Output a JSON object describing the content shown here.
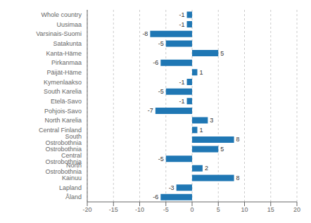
{
  "chart_data": {
    "type": "bar",
    "orientation": "horizontal",
    "categories": [
      "Whole country",
      "Uusimaa",
      "Varsinais-Suomi",
      "Satakunta",
      "Kanta-Häme",
      "Pirkanmaa",
      "Päijät-Häme",
      "Kymenlaakso",
      "South Karelia",
      "Etelä-Savo",
      "Pohjois-Savo",
      "North Karelia",
      "Central Finland",
      "South Ostrobothnia",
      "Ostrobothnia",
      "Central Ostrobothnia",
      "North Ostrobothnia",
      "Kainuu",
      "Lapland",
      "Åland"
    ],
    "values": [
      -1,
      -1,
      -8,
      -5,
      5,
      -6,
      1,
      -1,
      -5,
      -1,
      -7,
      3,
      1,
      8,
      5,
      -5,
      2,
      8,
      -3,
      -6
    ],
    "color": "#1f77b4",
    "xlim": [
      -20,
      20
    ],
    "xticks": [
      -20,
      -15,
      -10,
      -5,
      0,
      5,
      10,
      15,
      20
    ],
    "grid": true,
    "data_labels": true
  }
}
